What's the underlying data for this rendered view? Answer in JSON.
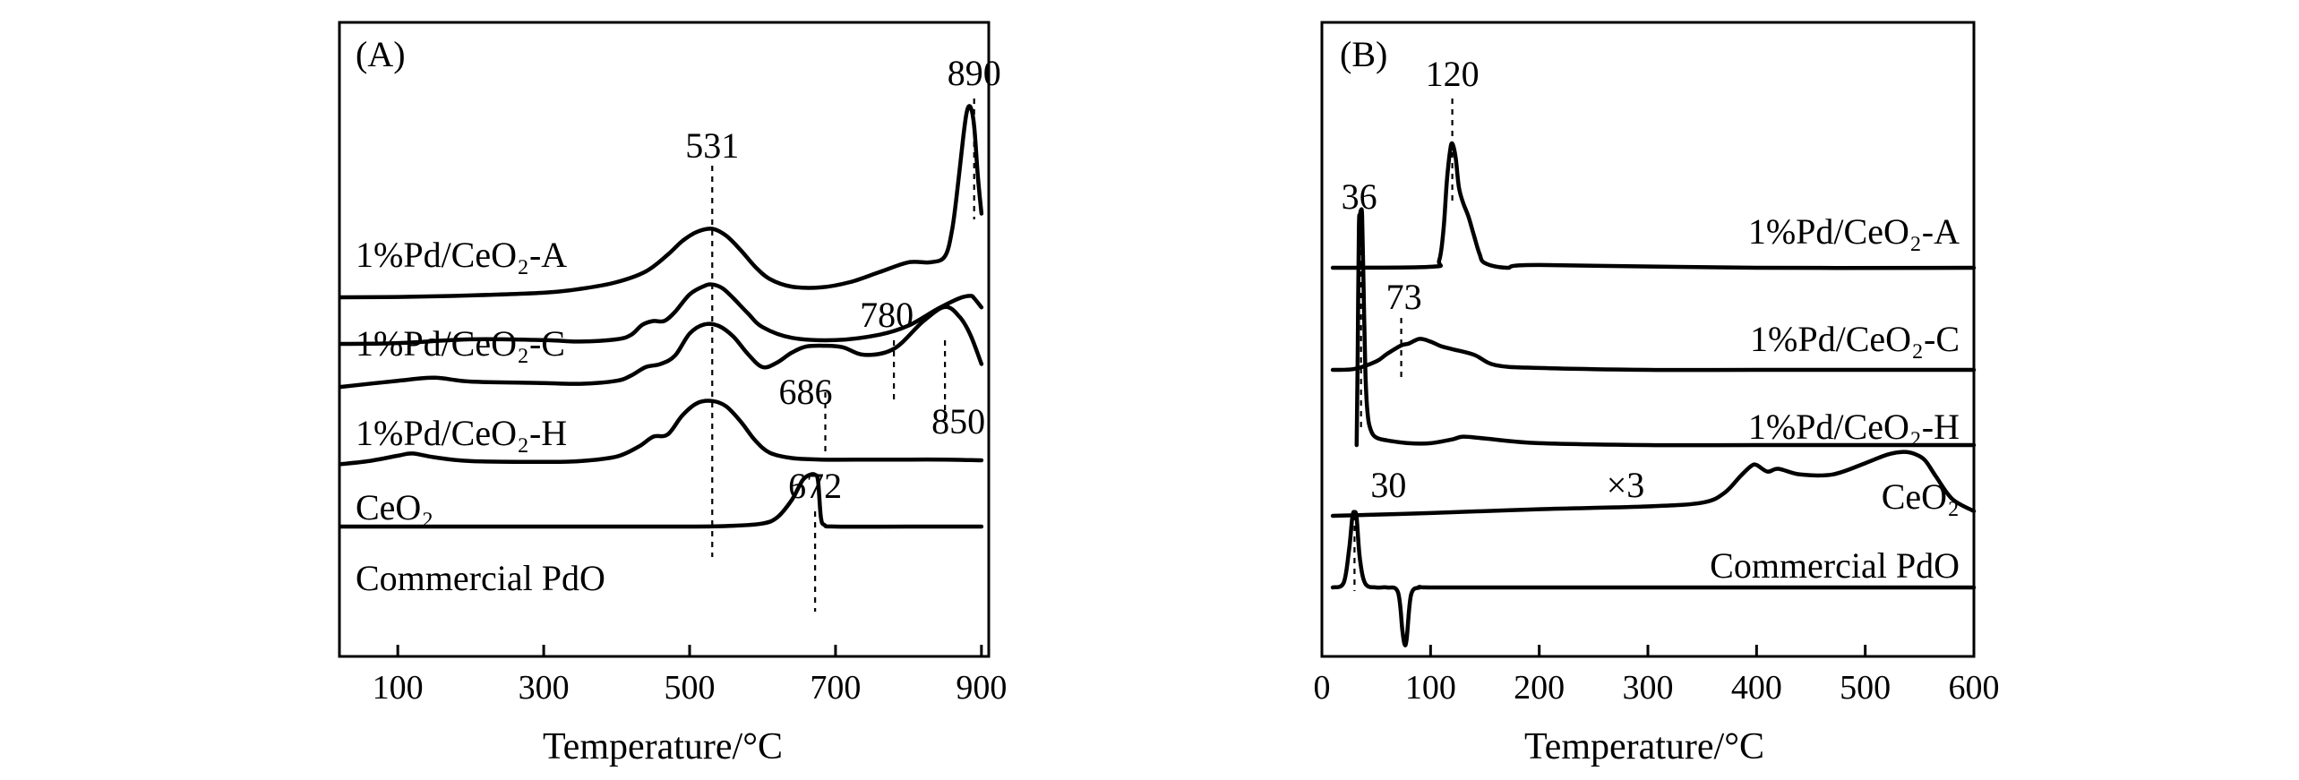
{
  "chart_data": [
    {
      "panel": "(A)",
      "type": "line",
      "xlabel": "Temperature/°C",
      "ylabel": "",
      "xlim": [
        20,
        910
      ],
      "xticks": [
        100,
        300,
        500,
        700,
        900
      ],
      "grid": false,
      "series": [
        {
          "name": "1%Pd/CeO₂-A",
          "x": [
            22,
            100,
            200,
            300,
            350,
            400,
            440,
            470,
            490,
            510,
            531,
            550,
            570,
            590,
            610,
            640,
            680,
            720,
            760,
            800,
            830,
            850,
            860,
            868,
            875,
            880,
            885,
            890,
            895,
            900
          ],
          "values": [
            0.0,
            0.05,
            0.25,
            0.6,
            1.1,
            2.0,
            3.4,
            5.6,
            7.4,
            8.6,
            9.0,
            8.1,
            6.2,
            4.0,
            2.4,
            1.4,
            1.3,
            2.0,
            3.3,
            4.6,
            4.6,
            5.4,
            9.0,
            15.0,
            21.0,
            24.4,
            25.0,
            22.5,
            16.0,
            11.0
          ]
        },
        {
          "name": "1%Pd/CeO₂-C",
          "x": [
            22,
            100,
            200,
            300,
            350,
            400,
            420,
            435,
            450,
            465,
            480,
            500,
            520,
            531,
            545,
            560,
            580,
            600,
            640,
            700,
            760,
            800,
            840,
            870,
            885,
            890,
            900
          ],
          "values": [
            0.0,
            0.1,
            0.6,
            0.5,
            0.3,
            0.6,
            1.2,
            2.5,
            3.0,
            3.0,
            4.2,
            6.5,
            7.6,
            7.8,
            7.3,
            6.0,
            4.0,
            2.2,
            0.8,
            0.5,
            1.2,
            2.4,
            4.6,
            6.0,
            6.3,
            6.0,
            4.8
          ]
        },
        {
          "name": "1%Pd/CeO₂-H",
          "x": [
            22,
            100,
            150,
            200,
            300,
            350,
            400,
            420,
            440,
            460,
            480,
            500,
            520,
            540,
            560,
            580,
            600,
            620,
            640,
            660,
            686,
            710,
            740,
            780,
            820,
            850,
            870,
            885,
            900
          ],
          "values": [
            0.0,
            0.8,
            1.2,
            0.7,
            0.5,
            0.4,
            0.8,
            1.5,
            2.6,
            3.0,
            4.1,
            7.0,
            8.2,
            8.0,
            6.6,
            4.3,
            2.6,
            3.2,
            4.5,
            5.3,
            5.4,
            5.2,
            4.2,
            5.0,
            8.6,
            10.5,
            9.2,
            6.8,
            3.0
          ]
        },
        {
          "name": "CeO₂",
          "x": [
            22,
            60,
            100,
            120,
            150,
            200,
            300,
            350,
            400,
            430,
            450,
            470,
            490,
            510,
            531,
            550,
            570,
            590,
            610,
            640,
            680,
            750,
            800,
            850,
            900
          ],
          "values": [
            0.2,
            0.6,
            1.3,
            1.6,
            1.1,
            0.6,
            0.5,
            0.6,
            1.2,
            2.5,
            3.8,
            4.1,
            6.6,
            8.2,
            8.5,
            7.8,
            5.8,
            3.3,
            1.7,
            1.0,
            0.8,
            0.8,
            0.8,
            0.8,
            0.7
          ]
        },
        {
          "name": "Commercial PdO",
          "x": [
            22,
            300,
            400,
            500,
            560,
            600,
            620,
            640,
            655,
            665,
            672,
            676,
            680,
            685,
            700,
            800,
            900
          ],
          "values": [
            0.0,
            0.0,
            0.0,
            0.0,
            0.1,
            0.4,
            1.2,
            3.5,
            6.1,
            6.8,
            6.8,
            6.0,
            1.2,
            0.2,
            0.0,
            0.0,
            0.0
          ]
        }
      ],
      "annotations": [
        {
          "text": "531",
          "x": 531
        },
        {
          "text": "890",
          "x": 890
        },
        {
          "text": "780",
          "x": 780
        },
        {
          "text": "686",
          "x": 686
        },
        {
          "text": "850",
          "x": 850
        },
        {
          "text": "672",
          "x": 672
        }
      ]
    },
    {
      "panel": "(B)",
      "type": "line",
      "xlabel": "Temperature/°C",
      "ylabel": "",
      "xlim": [
        0,
        600
      ],
      "xticks": [
        0,
        100,
        200,
        300,
        400,
        500,
        600
      ],
      "grid": false,
      "scale_note": "×3",
      "series": [
        {
          "name": "1%Pd/CeO₂-A",
          "x": [
            10,
            100,
            108,
            112,
            115,
            118,
            120,
            123,
            126,
            130,
            135,
            140,
            145,
            150,
            170,
            200,
            400,
            600
          ],
          "values": [
            0.0,
            0.1,
            0.8,
            4.2,
            9.2,
            12.5,
            13.2,
            11.8,
            8.6,
            6.9,
            5.4,
            3.4,
            1.5,
            0.5,
            0.0,
            0.3,
            0.0,
            0.0
          ],
          "dash_shift_at": 120,
          "dash_shift": 26
        },
        {
          "name": "1%Pd/CeO₂-C",
          "x": [
            10,
            30,
            50,
            60,
            73,
            80,
            90,
            100,
            110,
            120,
            140,
            160,
            200,
            300,
            400,
            600
          ],
          "values": [
            0.0,
            0.1,
            0.9,
            1.7,
            2.6,
            2.8,
            3.3,
            3.0,
            2.5,
            2.2,
            1.6,
            0.5,
            0.2,
            0.0,
            0.0,
            0.0
          ]
        },
        {
          "name": "1%Pd/CeO₂-H",
          "x": [
            32,
            33,
            34,
            35,
            36,
            37,
            38,
            40,
            42,
            45,
            50,
            60,
            80,
            100,
            120,
            130,
            150,
            200,
            300,
            400,
            600
          ],
          "values": [
            0.0,
            10.0,
            23.0,
            24.4,
            25.0,
            24.4,
            19.0,
            8.0,
            3.4,
            1.6,
            0.8,
            0.5,
            0.2,
            0.2,
            0.6,
            0.9,
            0.7,
            0.2,
            0.0,
            0.0,
            0.0
          ]
        },
        {
          "name": "CeO₂",
          "x": [
            10,
            100,
            200,
            300,
            350,
            370,
            385,
            395,
            400,
            410,
            420,
            440,
            470,
            500,
            520,
            535,
            545,
            555,
            565,
            580,
            600
          ],
          "values": [
            0.0,
            0.3,
            0.7,
            1.0,
            1.4,
            2.4,
            4.2,
            5.3,
            5.4,
            4.7,
            5.0,
            4.4,
            4.4,
            5.6,
            6.5,
            6.8,
            6.6,
            5.9,
            4.2,
            1.8,
            0.5
          ]
        },
        {
          "name": "Commercial PdO",
          "x": [
            10,
            20,
            25,
            28,
            30,
            32,
            35,
            40,
            50,
            60,
            70,
            74,
            76,
            78,
            82,
            90,
            100,
            200,
            300,
            400,
            600
          ],
          "values": [
            0.0,
            0.5,
            4.0,
            7.5,
            8.0,
            7.4,
            3.0,
            0.4,
            0.0,
            0.0,
            -0.5,
            -4.5,
            -6.0,
            -5.5,
            -0.8,
            0.0,
            0.0,
            0.0,
            0.0,
            0.0,
            0.0
          ]
        }
      ],
      "annotations": [
        {
          "text": "120",
          "x": 120
        },
        {
          "text": "36",
          "x": 36
        },
        {
          "text": "73",
          "x": 73
        },
        {
          "text": "30",
          "x": 30
        }
      ]
    }
  ]
}
